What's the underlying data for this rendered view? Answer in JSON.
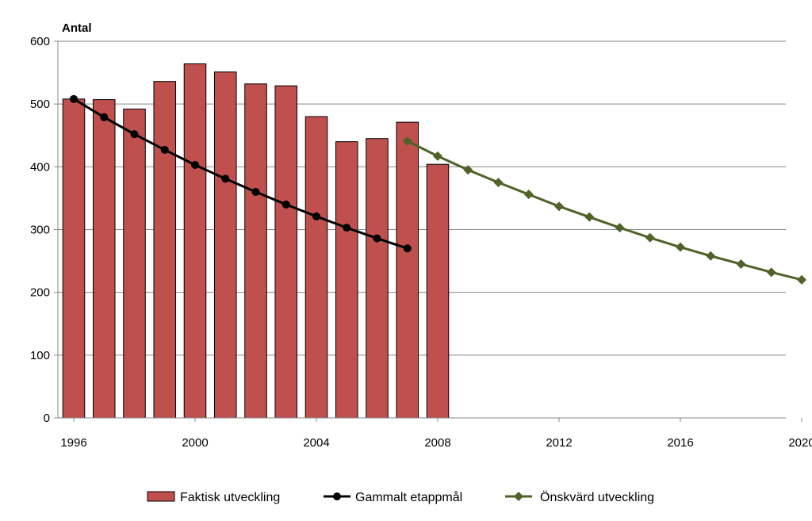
{
  "chart_data": {
    "type": "bar",
    "ylabel": "Antal",
    "xlabel": "",
    "title": "",
    "ylim": [
      0,
      600
    ],
    "yticks": [
      0,
      100,
      200,
      300,
      400,
      500,
      600
    ],
    "xlim": [
      1996,
      2020
    ],
    "xticks": [
      1996,
      2000,
      2004,
      2008,
      2012,
      2016,
      2020
    ],
    "grid": "horizontal",
    "legend_position": "bottom",
    "series": [
      {
        "name": "Faktisk utveckling",
        "kind": "bar",
        "color": "#c0504d",
        "x": [
          1996,
          1997,
          1998,
          1999,
          2000,
          2001,
          2002,
          2003,
          2004,
          2005,
          2006,
          2007,
          2008
        ],
        "values": [
          508,
          507,
          492,
          536,
          564,
          551,
          532,
          529,
          480,
          440,
          445,
          471,
          404
        ]
      },
      {
        "name": "Gammalt etappmål",
        "kind": "line",
        "marker": "circle",
        "color": "#000000",
        "x": [
          1996,
          1997,
          1998,
          1999,
          2000,
          2001,
          2002,
          2003,
          2004,
          2005,
          2006,
          2007
        ],
        "values": [
          508,
          479,
          452,
          427,
          403,
          381,
          360,
          340,
          321,
          303,
          286,
          270
        ]
      },
      {
        "name": "Önskvärd utveckling",
        "kind": "line",
        "marker": "diamond",
        "color": "#4f6228",
        "x": [
          2007,
          2008,
          2009,
          2010,
          2011,
          2012,
          2013,
          2014,
          2015,
          2016,
          2017,
          2018,
          2019,
          2020
        ],
        "values": [
          441,
          417,
          395,
          375,
          356,
          337,
          320,
          303,
          287,
          272,
          258,
          245,
          232,
          220
        ]
      }
    ]
  }
}
